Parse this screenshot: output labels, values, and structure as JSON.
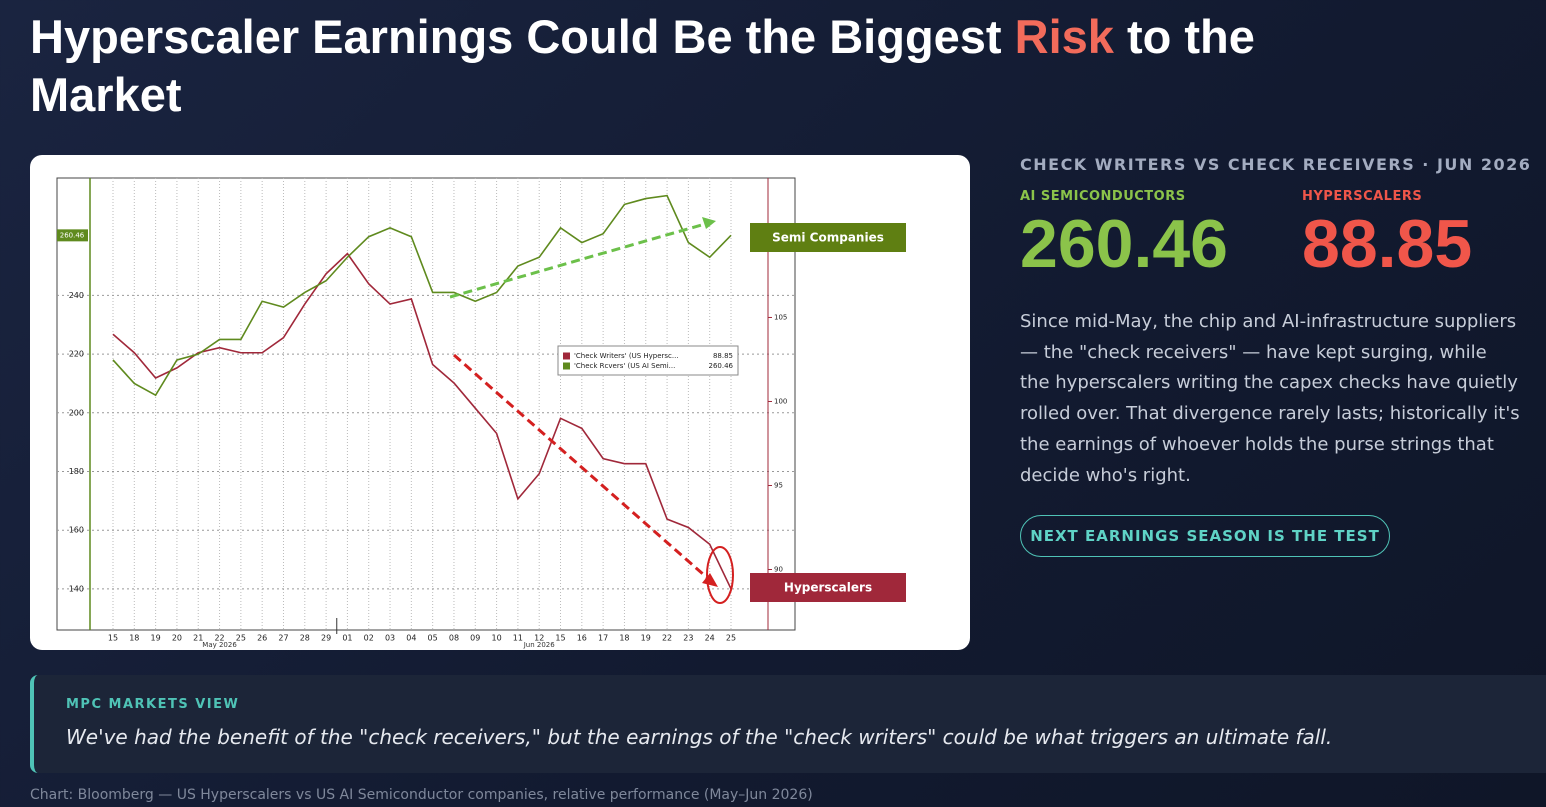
{
  "header": {
    "title_start": "Hyperscaler Earnings Could Be the Biggest ",
    "title_highlight": "Risk",
    "title_end": " to the Market"
  },
  "chart_data": {
    "type": "line",
    "categories": [
      "15",
      "18",
      "19",
      "20",
      "21",
      "22",
      "25",
      "26",
      "27",
      "28",
      "29",
      "01",
      "02",
      "03",
      "04",
      "05",
      "08",
      "09",
      "10",
      "11",
      "12",
      "15",
      "16",
      "17",
      "18",
      "19",
      "22",
      "23",
      "24",
      "25"
    ],
    "x_group_labels": [
      "May 2026",
      "Jun 2026"
    ],
    "series": [
      {
        "name": "'Check Writers' (US Hypersc...",
        "color": "#a0283a",
        "axis": "y2",
        "values": [
          104.0,
          102.9,
          101.4,
          102.0,
          102.9,
          103.2,
          102.9,
          102.9,
          103.8,
          105.8,
          107.6,
          108.8,
          107.0,
          105.8,
          106.1,
          102.2,
          101.1,
          99.6,
          98.1,
          94.2,
          95.7,
          99.0,
          98.4,
          96.6,
          96.3,
          96.3,
          93.0,
          92.5,
          91.5,
          88.85
        ]
      },
      {
        "name": "'Check Rcvers' (US AI Semi...",
        "color": "#5f8a1e",
        "values": [
          218,
          210,
          206,
          218,
          220,
          225,
          225,
          238,
          236,
          241,
          245,
          253,
          260,
          263,
          260,
          241,
          241,
          238,
          241,
          250,
          253,
          263,
          258,
          261,
          271,
          273,
          274,
          258,
          253,
          260.46
        ]
      }
    ],
    "ylim": [
      126,
      280
    ],
    "yticks": [
      140,
      160,
      180,
      200,
      220,
      240
    ],
    "y2lim": [
      86.4,
      113.3
    ],
    "y2ticks": [
      90,
      95,
      100,
      105
    ],
    "grid": true,
    "annotations": [
      "Semi Companies",
      "Hyperscalers"
    ]
  },
  "panel": {
    "kicker": "CHECK WRITERS VS CHECK RECEIVERS · JUN 2026",
    "stat_labels": [
      "AI SEMICONDUCTORS",
      "HYPERSCALERS"
    ],
    "body": "Since mid-May, the chip and AI-infrastructure suppliers — the \"check receivers\" — have kept surging, while the hyperscalers writing the capex checks have quietly rolled over. That divergence rarely lasts; historically it's the earnings of whoever holds the purse strings that decide who's right.",
    "button": "NEXT EARNINGS SEASON IS THE TEST"
  },
  "quote": {
    "label": "MPC MARKETS VIEW",
    "text": "We've had the benefit of the \"check receivers,\" but the earnings of the \"check writers\" could be what triggers an ultimate fall."
  },
  "footer": "Chart: Bloomberg — US Hyperscalers vs US AI Semiconductor companies, relative performance (May–Jun 2026)"
}
